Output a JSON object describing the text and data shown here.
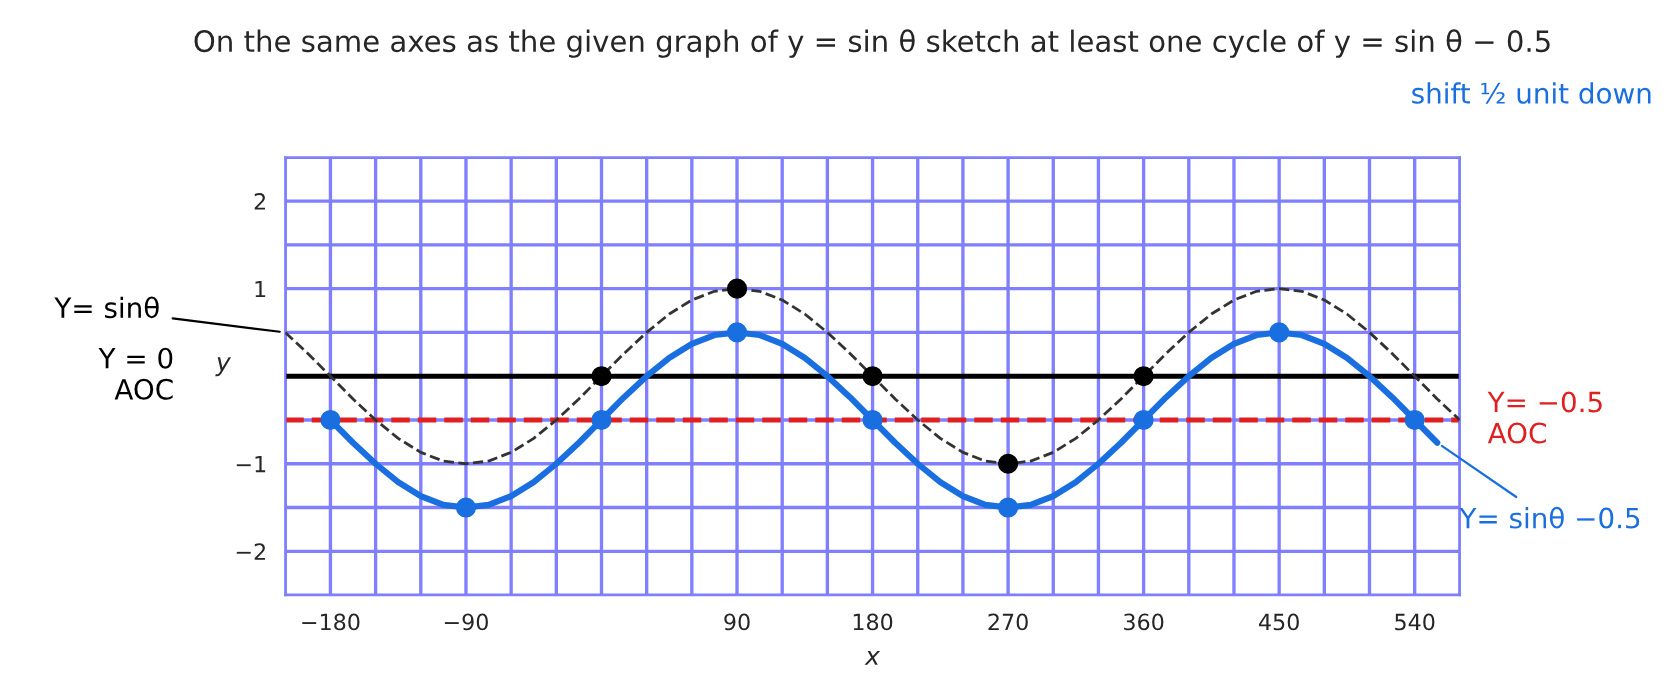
{
  "chart_data": {
    "type": "line",
    "title": "On the same axes as the given graph of y = sin θ sketch at least one cycle of y = sin θ − 0.5",
    "series": [
      {
        "color": "#333333",
        "line_style": "dashed",
        "marker": "none",
        "x": [
          -210,
          -195,
          -180,
          -165,
          -150,
          -135,
          -120,
          -105,
          -90,
          -75,
          -60,
          -45,
          -30,
          -15,
          0,
          15,
          30,
          45,
          60,
          75,
          90,
          105,
          120,
          135,
          150,
          165,
          180,
          195,
          210,
          225,
          240,
          255,
          270,
          285,
          300,
          315,
          330,
          345,
          360,
          375,
          390,
          405,
          420,
          435,
          450,
          465,
          480,
          495,
          510,
          525,
          540,
          555,
          570
        ],
        "values": [
          0.5,
          0.26,
          0,
          -0.26,
          -0.5,
          -0.71,
          -0.87,
          -0.97,
          -1,
          -0.97,
          -0.87,
          -0.71,
          -0.5,
          -0.26,
          0,
          0.26,
          0.5,
          0.71,
          0.87,
          0.97,
          1,
          0.97,
          0.87,
          0.71,
          0.5,
          0.26,
          0,
          -0.26,
          -0.5,
          -0.71,
          -0.87,
          -0.97,
          -1,
          -0.97,
          -0.87,
          -0.71,
          -0.5,
          -0.26,
          0,
          0.26,
          0.5,
          0.71,
          0.87,
          0.97,
          1,
          0.97,
          0.87,
          0.71,
          0.5,
          0.26,
          0,
          -0.26,
          -0.5
        ]
      },
      {
        "type": "scatter",
        "color": "#000000",
        "marker": "circle",
        "x": [
          0,
          90,
          180,
          270,
          360
        ],
        "values": [
          0,
          1,
          0,
          -1,
          0
        ]
      },
      {
        "color": "#1a6fe0",
        "line_style": "solid",
        "marker": "none",
        "x": [
          -180,
          -165,
          -150,
          -135,
          -120,
          -105,
          -90,
          -75,
          -60,
          -45,
          -30,
          -15,
          0,
          15,
          30,
          45,
          60,
          75,
          90,
          105,
          120,
          135,
          150,
          165,
          180,
          195,
          210,
          225,
          240,
          255,
          270,
          285,
          300,
          315,
          330,
          345,
          360,
          375,
          390,
          405,
          420,
          435,
          450,
          465,
          480,
          495,
          510,
          525,
          540,
          555
        ],
        "values": [
          -0.5,
          -0.76,
          -1,
          -1.21,
          -1.37,
          -1.47,
          -1.5,
          -1.47,
          -1.37,
          -1.21,
          -1,
          -0.76,
          -0.5,
          -0.24,
          0,
          0.21,
          0.37,
          0.47,
          0.5,
          0.47,
          0.37,
          0.21,
          0,
          -0.24,
          -0.5,
          -0.76,
          -1,
          -1.21,
          -1.37,
          -1.47,
          -1.5,
          -1.47,
          -1.37,
          -1.21,
          -1,
          -0.76,
          -0.5,
          -0.24,
          0,
          0.21,
          0.37,
          0.47,
          0.5,
          0.47,
          0.37,
          0.21,
          0,
          -0.24,
          -0.5,
          -0.76
        ]
      },
      {
        "type": "scatter",
        "color": "#1a6fe0",
        "marker": "circle",
        "x": [
          -180,
          -90,
          0,
          90,
          180,
          270,
          360,
          450,
          540
        ],
        "values": [
          -0.5,
          -1.5,
          -0.5,
          0.5,
          -0.5,
          -1.5,
          -0.5,
          0.5,
          -0.5
        ]
      }
    ],
    "xlim": [
      -210,
      570
    ],
    "xticks": [
      {
        "value": -210,
        "label": null
      },
      {
        "value": -180,
        "label": "−180"
      },
      {
        "value": -150,
        "label": null
      },
      {
        "value": -120,
        "label": null
      },
      {
        "value": -90,
        "label": "−90"
      },
      {
        "value": -60,
        "label": null
      },
      {
        "value": -30,
        "label": null
      },
      {
        "value": 0,
        "label": null
      },
      {
        "value": 30,
        "label": null
      },
      {
        "value": 60,
        "label": null
      },
      90,
      {
        "value": 120,
        "label": null
      },
      {
        "value": 150,
        "label": null
      },
      180,
      {
        "value": 210,
        "label": null
      },
      {
        "value": 240,
        "label": null
      },
      270,
      {
        "value": 300,
        "label": null
      },
      {
        "value": 330,
        "label": null
      },
      360,
      {
        "value": 390,
        "label": null
      },
      {
        "value": 420,
        "label": null
      },
      450,
      {
        "value": 480,
        "label": null
      },
      {
        "value": 510,
        "label": null
      },
      540,
      {
        "value": 570,
        "label": null
      }
    ],
    "ylim": [
      -2.5,
      2.5
    ],
    "yticks": [
      {
        "value": -2.5,
        "label": null
      },
      {
        "value": -2,
        "label": "−2"
      },
      {
        "value": -1.5,
        "label": null
      },
      {
        "value": -1,
        "label": "−1"
      },
      {
        "value": -0.5,
        "label": null
      },
      {
        "value": 0,
        "label": null
      },
      {
        "value": 0.5,
        "label": null
      },
      1,
      {
        "value": 1.5,
        "label": null
      },
      2,
      {
        "value": 2.5,
        "label": null
      }
    ],
    "xlabel": "x",
    "ylabel": "y",
    "grid": true,
    "legend": false,
    "ref_lines": [
      {
        "axis": "y",
        "value": 0,
        "label": "Y = 0\nAOC",
        "color": "#000000",
        "line_style": "solid"
      },
      {
        "axis": "y",
        "value": -0.5,
        "label": "Y= −0.5\nAOC",
        "color": "#e02020",
        "line_style": "dashed"
      }
    ],
    "annotations": [
      {
        "text": "Y= sinθ",
        "x": -210,
        "y": 0.5
      },
      {
        "text": "Y= sinθ −0.5",
        "x": 555,
        "y": -0.76
      },
      "shift ½ unit down"
    ]
  }
}
